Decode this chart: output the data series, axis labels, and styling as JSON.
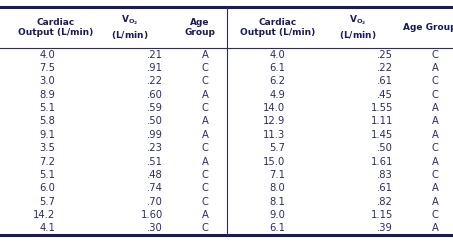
{
  "left_data": [
    [
      "4.0",
      ".21",
      "A"
    ],
    [
      "7.5",
      ".91",
      "C"
    ],
    [
      "3.0",
      ".22",
      "C"
    ],
    [
      "8.9",
      ".60",
      "A"
    ],
    [
      "5.1",
      ".59",
      "C"
    ],
    [
      "5.8",
      ".50",
      "A"
    ],
    [
      "9.1",
      ".99",
      "A"
    ],
    [
      "3.5",
      ".23",
      "C"
    ],
    [
      "7.2",
      ".51",
      "A"
    ],
    [
      "5.1",
      ".48",
      "C"
    ],
    [
      "6.0",
      ".74",
      "C"
    ],
    [
      "5.7",
      ".70",
      "C"
    ],
    [
      "14.2",
      "1.60",
      "A"
    ],
    [
      "4.1",
      ".30",
      "C"
    ]
  ],
  "right_data": [
    [
      "4.0",
      ".25",
      "C"
    ],
    [
      "6.1",
      ".22",
      "A"
    ],
    [
      "6.2",
      ".61",
      "C"
    ],
    [
      "4.9",
      ".45",
      "C"
    ],
    [
      "14.0",
      "1.55",
      "A"
    ],
    [
      "12.9",
      "1.11",
      "A"
    ],
    [
      "11.3",
      "1.45",
      "A"
    ],
    [
      "5.7",
      ".50",
      "C"
    ],
    [
      "15.0",
      "1.61",
      "A"
    ],
    [
      "7.1",
      ".83",
      "C"
    ],
    [
      "8.0",
      ".61",
      "A"
    ],
    [
      "8.1",
      ".82",
      "A"
    ],
    [
      "9.0",
      "1.15",
      "C"
    ],
    [
      "6.1",
      ".39",
      "A"
    ]
  ],
  "bg_color": "#ffffff",
  "line_color": "#2b2b6b",
  "text_color": "#2b2b6b",
  "header_color": "#1a1a5e",
  "top_line_color": "#1a1a5e",
  "figsize": [
    4.53,
    2.42
  ],
  "dpi": 100
}
